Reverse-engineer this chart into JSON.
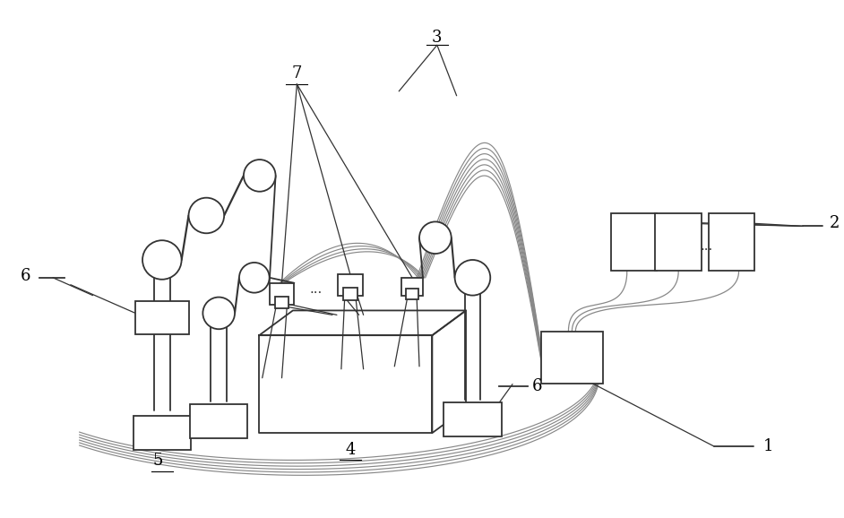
{
  "bg_color": "#ffffff",
  "lc": "#333333",
  "lc_gray": "#888888",
  "lw": 1.3,
  "lw_thin": 0.9,
  "fig_w": 9.42,
  "fig_h": 5.78,
  "dpi": 100
}
